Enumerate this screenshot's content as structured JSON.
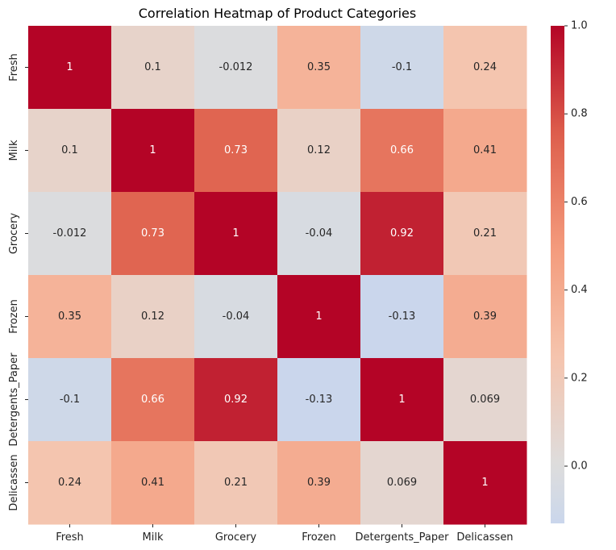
{
  "chart_data": {
    "type": "heatmap",
    "title": "Correlation Heatmap of Product Categories",
    "xlabel": "",
    "ylabel": "",
    "x_categories": [
      "Fresh",
      "Milk",
      "Grocery",
      "Frozen",
      "Detergents_Paper",
      "Delicassen"
    ],
    "y_categories": [
      "Fresh",
      "Milk",
      "Grocery",
      "Frozen",
      "Detergents_Paper",
      "Delicassen"
    ],
    "values": [
      [
        1,
        0.1,
        -0.012,
        0.35,
        -0.1,
        0.24
      ],
      [
        0.1,
        1,
        0.73,
        0.12,
        0.66,
        0.41
      ],
      [
        -0.012,
        0.73,
        1,
        -0.04,
        0.92,
        0.21
      ],
      [
        0.35,
        0.12,
        -0.04,
        1,
        -0.13,
        0.39
      ],
      [
        -0.1,
        0.66,
        0.92,
        -0.13,
        1,
        0.069
      ],
      [
        0.24,
        0.41,
        0.21,
        0.39,
        0.069,
        1
      ]
    ],
    "annotations": [
      [
        "1",
        "0.1",
        "-0.012",
        "0.35",
        "-0.1",
        "0.24"
      ],
      [
        "0.1",
        "1",
        "0.73",
        "0.12",
        "0.66",
        "0.41"
      ],
      [
        "-0.012",
        "0.73",
        "1",
        "-0.04",
        "0.92",
        "0.21"
      ],
      [
        "0.35",
        "0.12",
        "-0.04",
        "1",
        "-0.13",
        "0.39"
      ],
      [
        "-0.1",
        "0.66",
        "0.92",
        "-0.13",
        "1",
        "0.069"
      ],
      [
        "0.24",
        "0.41",
        "0.21",
        "0.39",
        "0.069",
        "1"
      ]
    ],
    "colormap": "coolwarm",
    "colorbar": {
      "vmin": -0.13,
      "vmax": 1.0,
      "center": 0,
      "ticks": [
        0.0,
        0.2,
        0.4,
        0.6,
        0.8,
        1.0
      ],
      "tick_labels": [
        "0.0",
        "0.2",
        "0.4",
        "0.6",
        "0.8",
        "1.0"
      ]
    },
    "grid": false,
    "legend": "colorbar right"
  }
}
